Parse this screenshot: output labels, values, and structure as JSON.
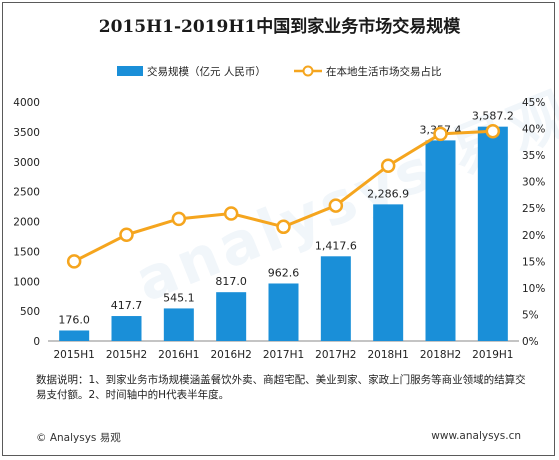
{
  "chart_data": {
    "type": "bar+line",
    "title": "2015H1-2019H1中国到家业务市场交易规模",
    "categories": [
      "2015H1",
      "2015H2",
      "2016H1",
      "2016H2",
      "2017H1",
      "2017H2",
      "2018H1",
      "2018H2",
      "2019H1"
    ],
    "series": [
      {
        "name": "交易规模（亿元 人民币）",
        "type": "bar",
        "axis": "left",
        "values": [
          176.0,
          417.7,
          545.1,
          817.0,
          962.6,
          1417.6,
          2286.9,
          3357.4,
          3587.2
        ],
        "labels": [
          "176.0",
          "417.7",
          "545.1",
          "817.0",
          "962.6",
          "1,417.6",
          "2,286.9",
          "3,357.4",
          "3,587.2"
        ],
        "color": "#1a8fd8"
      },
      {
        "name": "在本地生活市场交易占比",
        "type": "line",
        "axis": "right",
        "values": [
          15.0,
          20.0,
          23.0,
          24.0,
          21.5,
          25.5,
          33.0,
          39.0,
          39.5
        ],
        "color": "#f5a51e"
      }
    ],
    "y_left": {
      "min": 0,
      "max": 4000,
      "ticks": [
        0,
        500,
        1000,
        1500,
        2000,
        2500,
        3000,
        3500,
        4000
      ]
    },
    "y_right": {
      "min": 0,
      "max": 45,
      "ticks": [
        "0%",
        "5%",
        "10%",
        "15%",
        "20%",
        "25%",
        "30%",
        "35%",
        "40%",
        "45%"
      ]
    },
    "legend": "top-center",
    "grid": false
  },
  "note": "数据说明：1、到家业务市场规模涵盖餐饮外卖、商超宅配、美业到家、家政上门服务等商业领域的结算交易支付额。2、时间轴中的H代表半年度。",
  "footer": {
    "brand": "© Analysys 易观",
    "website": "www.analysys.cn"
  },
  "watermark": "analysys 易观"
}
